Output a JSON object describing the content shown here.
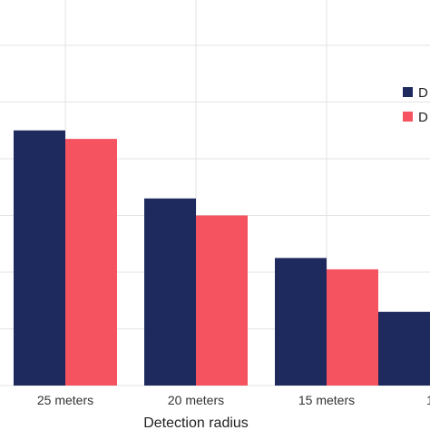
{
  "chart_data": {
    "type": "bar",
    "title": "",
    "xlabel": "Detection radius",
    "ylabel": "",
    "categories": [
      "25 meters",
      "20 meters",
      "15 meters",
      "1"
    ],
    "series": [
      {
        "name": "D",
        "color": "#1e2a5e",
        "values": [
          4.5,
          3.3,
          2.25,
          1.3
        ]
      },
      {
        "name": "D",
        "color": "#f4535f",
        "values": [
          4.35,
          3.0,
          2.05,
          null
        ]
      }
    ],
    "ylim": [
      0,
      6.8
    ],
    "grid": true,
    "legend_position": "right"
  }
}
